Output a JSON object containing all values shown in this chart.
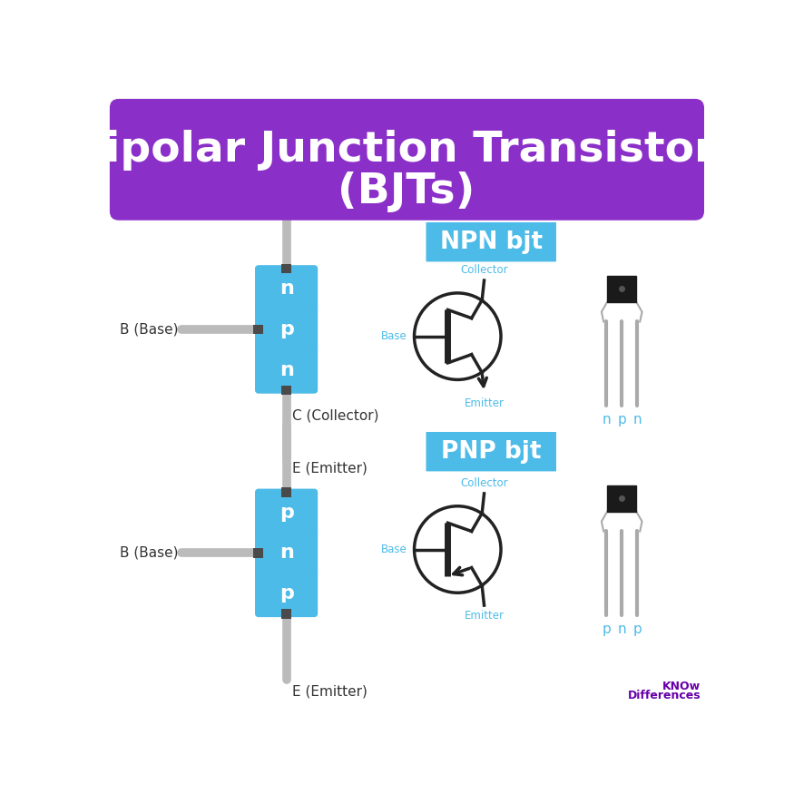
{
  "title_line1": "Bipolar Junction Transistors",
  "title_line2": "(BJTs)",
  "title_bg_color": "#8B2FC9",
  "title_text_color": "#FFFFFF",
  "bg_color": "#FFFFFF",
  "blue_color": "#4DBBE8",
  "dark_connector": "#4A4A4A",
  "wire_color": "#BBBBBB",
  "symbol_color": "#222222",
  "label_color": "#4DBBE8",
  "npn_label": "NPN bjt",
  "pnp_label": "PNP bjt",
  "npn_layers": [
    "n",
    "p",
    "n"
  ],
  "pnp_layers": [
    "p",
    "n",
    "p"
  ],
  "watermark_line1": "KNOw",
  "watermark_line2": "Differences"
}
